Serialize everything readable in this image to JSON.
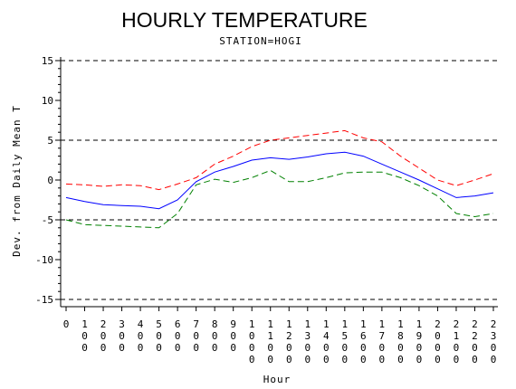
{
  "chart_data": {
    "type": "line",
    "title": "HOURLY TEMPERATURE",
    "subtitle": "STATION=HOGI",
    "xlabel": "Hour",
    "ylabel": "Dev. from Daily Mean T",
    "x": [
      0,
      100,
      200,
      300,
      400,
      500,
      600,
      700,
      800,
      900,
      1000,
      1100,
      1200,
      1300,
      1400,
      1500,
      1600,
      1700,
      1800,
      1900,
      2000,
      2100,
      2200,
      2300
    ],
    "xticks": [
      "0",
      "100",
      "200",
      "300",
      "400",
      "500",
      "600",
      "700",
      "800",
      "900",
      "1000",
      "1100",
      "1200",
      "1300",
      "1400",
      "1500",
      "1600",
      "1700",
      "1800",
      "1900",
      "2000",
      "2100",
      "2200",
      "2300"
    ],
    "xlim": [
      0,
      2300
    ],
    "ylim": [
      -15,
      15
    ],
    "yticks": [
      -15,
      -10,
      -5,
      0,
      5,
      10,
      15
    ],
    "reference_lines": [
      -15,
      -5,
      5,
      15
    ],
    "series": [
      {
        "color": "#ff0000",
        "dash": "dashed",
        "values": [
          -0.5,
          -0.6,
          -0.8,
          -0.6,
          -0.7,
          -1.2,
          -0.5,
          0.3,
          2.0,
          3.0,
          4.2,
          5.0,
          5.3,
          5.6,
          5.9,
          6.2,
          5.3,
          4.8,
          3.0,
          1.5,
          0.0,
          -0.7,
          0.0,
          0.8
        ]
      },
      {
        "color": "#0000ff",
        "dash": "solid",
        "values": [
          -2.2,
          -2.7,
          -3.1,
          -3.2,
          -3.3,
          -3.6,
          -2.5,
          -0.2,
          1.0,
          1.7,
          2.5,
          2.8,
          2.6,
          2.9,
          3.3,
          3.5,
          3.0,
          2.0,
          1.0,
          0.0,
          -1.1,
          -2.2,
          -2.0,
          -1.6
        ]
      },
      {
        "color": "#008000",
        "dash": "dashed",
        "values": [
          -5.0,
          -5.6,
          -5.7,
          -5.8,
          -5.9,
          -6.0,
          -4.2,
          -0.6,
          0.1,
          -0.3,
          0.3,
          1.2,
          -0.2,
          -0.2,
          0.3,
          0.9,
          1.0,
          1.0,
          0.3,
          -0.7,
          -2.0,
          -4.2,
          -4.6,
          -4.2
        ]
      }
    ]
  }
}
